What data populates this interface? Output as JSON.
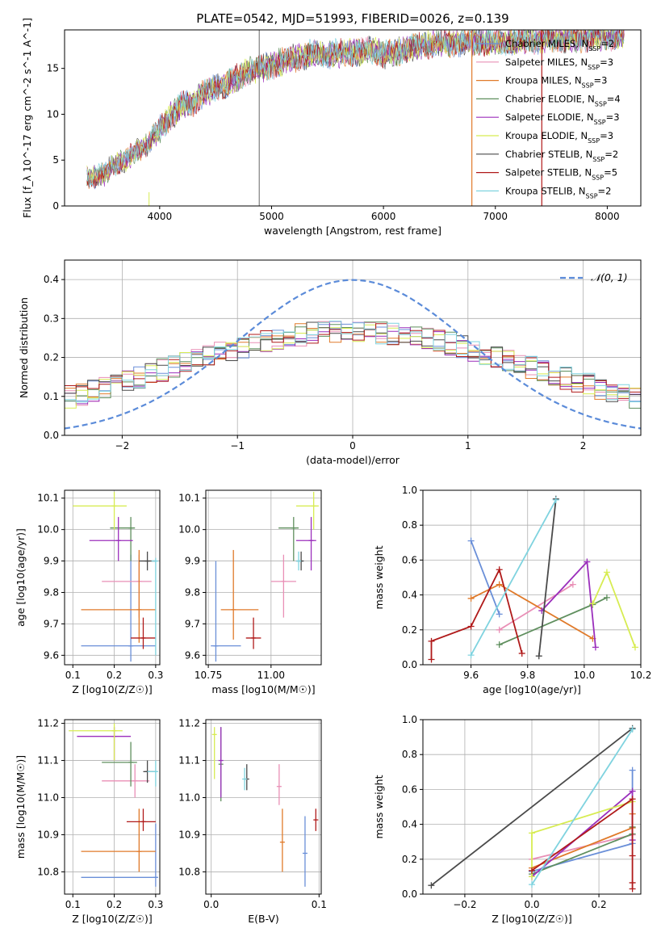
{
  "title": "PLATE=0542, MJD=51993, FIBERID=0026, z=0.139",
  "chart_data": [
    {
      "type": "line",
      "id": "spectrum",
      "xlabel": "wavelength [Angstrom, rest frame]",
      "ylabel": "Flux [f_λ 10^-17 erg cm^-2 s^-1 A^-1]",
      "xlim": [
        3150,
        8300
      ],
      "ylim": [
        0,
        19.2
      ],
      "xticks": [
        4000,
        5000,
        6000,
        7000,
        8000
      ],
      "yticks": [
        0,
        5,
        10,
        15
      ],
      "grid": false,
      "legend_position": "top-right",
      "continuum": [
        [
          3350,
          3.1
        ],
        [
          3500,
          3.4
        ],
        [
          3600,
          4.6
        ],
        [
          3700,
          5.0
        ],
        [
          3800,
          6.0
        ],
        [
          3900,
          6.9
        ],
        [
          4000,
          8.4
        ],
        [
          4100,
          9.8
        ],
        [
          4200,
          11.0
        ],
        [
          4300,
          11.2
        ],
        [
          4400,
          12.4
        ],
        [
          4500,
          12.9
        ],
        [
          4600,
          13.3
        ],
        [
          4700,
          14.0
        ],
        [
          4800,
          14.7
        ],
        [
          4900,
          15.0
        ],
        [
          5000,
          15.3
        ],
        [
          5100,
          15.7
        ],
        [
          5200,
          16.1
        ],
        [
          5300,
          16.5
        ],
        [
          5500,
          16.6
        ],
        [
          5700,
          16.7
        ],
        [
          5900,
          17.0
        ],
        [
          6000,
          16.5
        ],
        [
          6200,
          17.1
        ],
        [
          6500,
          17.8
        ],
        [
          7000,
          17.9
        ],
        [
          7500,
          18.2
        ],
        [
          8000,
          18.5
        ],
        [
          8150,
          18.6
        ]
      ],
      "series": [
        {
          "name": "Chabrier MILES, N_SSP=2",
          "color": "#6a8fd8"
        },
        {
          "name": "Salpeter MILES, N_SSP=3",
          "color": "#e98fb6"
        },
        {
          "name": "Kroupa MILES, N_SSP=3",
          "color": "#e07a2a"
        },
        {
          "name": "Chabrier ELODIE, N_SSP=4",
          "color": "#5f8f5e"
        },
        {
          "name": "Salpeter ELODIE, N_SSP=3",
          "color": "#9b2fbc"
        },
        {
          "name": "Kroupa ELODIE, N_SSP=3",
          "color": "#d7ec52"
        },
        {
          "name": "Chabrier STELIB, N_SSP=2",
          "color": "#4a4a4a"
        },
        {
          "name": "Salpeter STELIB, N_SSP=5",
          "color": "#b01a1a"
        },
        {
          "name": "Kroupa STELIB, N_SSP=2",
          "color": "#7fd3df"
        }
      ]
    },
    {
      "type": "histogram",
      "id": "residuals",
      "xlabel": "(data-model)/error",
      "ylabel": "Normed distribution",
      "xlim": [
        -2.5,
        2.5
      ],
      "ylim": [
        0,
        0.45
      ],
      "xticks": [
        -2,
        -1,
        0,
        1,
        2
      ],
      "yticks": [
        0.0,
        0.1,
        0.2,
        0.3,
        0.4
      ],
      "grid": true,
      "bin_width": 0.1,
      "legend_position": "top-right",
      "legend": "𝒩(0, 1)",
      "reference_curve": "gaussian",
      "reference_color": "#5b8bd9"
    },
    {
      "type": "scatter",
      "id": "age_vs_Z",
      "xlabel": "Z [log10(Z/Z☉)]",
      "ylabel": "age [log10(age/yr)]",
      "xlim": [
        0.08,
        0.31
      ],
      "ylim": [
        9.57,
        10.125
      ],
      "xticks": [
        0.1,
        0.2,
        0.3
      ],
      "yticks": [
        9.6,
        9.7,
        9.8,
        9.9,
        10.0,
        10.1
      ],
      "grid": true,
      "points": [
        {
          "x": 0.24,
          "y": 9.63,
          "xerr": [
            0.12,
            0.3
          ],
          "yerr": [
            9.58,
            9.92
          ],
          "color": "#6a8fd8"
        },
        {
          "x": 0.26,
          "y": 9.835,
          "xerr": [
            0.17,
            0.29
          ],
          "yerr": [
            9.72,
            9.92
          ],
          "color": "#e98fb6"
        },
        {
          "x": 0.26,
          "y": 9.745,
          "xerr": [
            0.12,
            0.3
          ],
          "yerr": [
            9.64,
            9.935
          ],
          "color": "#e07a2a"
        },
        {
          "x": 0.24,
          "y": 10.005,
          "xerr": [
            0.19,
            0.25
          ],
          "yerr": [
            9.9,
            10.04
          ],
          "color": "#5f8f5e"
        },
        {
          "x": 0.21,
          "y": 9.965,
          "xerr": [
            0.14,
            0.245
          ],
          "yerr": [
            9.9,
            10.04
          ],
          "color": "#9b2fbc"
        },
        {
          "x": 0.2,
          "y": 10.075,
          "xerr": [
            0.1,
            0.23
          ],
          "yerr": [
            10.0,
            10.12
          ],
          "color": "#d7ec52"
        },
        {
          "x": 0.28,
          "y": 9.9,
          "xerr": [
            0.26,
            0.3
          ],
          "yerr": [
            9.87,
            9.93
          ],
          "color": "#4a4a4a"
        },
        {
          "x": 0.27,
          "y": 9.655,
          "xerr": [
            0.24,
            0.3
          ],
          "yerr": [
            9.62,
            9.72
          ],
          "color": "#b01a1a"
        },
        {
          "x": 0.3,
          "y": 9.9,
          "xerr": [
            0.29,
            0.305
          ],
          "yerr": [
            9.6,
            9.91
          ],
          "color": "#7fd3df"
        }
      ]
    },
    {
      "type": "scatter",
      "id": "age_vs_mass",
      "xlabel": "mass [log10(M/M☉)]",
      "ylabel": "",
      "xlim": [
        10.74,
        11.2
      ],
      "ylim": [
        9.57,
        10.125
      ],
      "xticks": [
        10.75,
        11.0
      ],
      "yticks": [
        9.6,
        9.7,
        9.8,
        9.9,
        10.0,
        10.1
      ],
      "grid": true,
      "points": [
        {
          "x": 10.78,
          "y": 9.63,
          "xerr": [
            10.76,
            10.88
          ],
          "yerr": [
            9.58,
            9.9
          ],
          "color": "#6a8fd8"
        },
        {
          "x": 11.05,
          "y": 9.835,
          "xerr": [
            11.0,
            11.1
          ],
          "yerr": [
            9.72,
            9.92
          ],
          "color": "#e98fb6"
        },
        {
          "x": 10.85,
          "y": 9.745,
          "xerr": [
            10.8,
            10.95
          ],
          "yerr": [
            9.65,
            9.935
          ],
          "color": "#e07a2a"
        },
        {
          "x": 11.09,
          "y": 10.005,
          "xerr": [
            11.03,
            11.11
          ],
          "yerr": [
            9.9,
            10.04
          ],
          "color": "#5f8f5e"
        },
        {
          "x": 11.16,
          "y": 9.965,
          "xerr": [
            11.1,
            11.18
          ],
          "yerr": [
            9.87,
            10.04
          ],
          "color": "#9b2fbc"
        },
        {
          "x": 11.17,
          "y": 10.075,
          "xerr": [
            11.1,
            11.19
          ],
          "yerr": [
            10.0,
            10.12
          ],
          "color": "#d7ec52"
        },
        {
          "x": 11.12,
          "y": 9.9,
          "xerr": [
            11.1,
            11.13
          ],
          "yerr": [
            9.87,
            9.93
          ],
          "color": "#4a4a4a"
        },
        {
          "x": 10.93,
          "y": 9.655,
          "xerr": [
            10.9,
            10.96
          ],
          "yerr": [
            9.62,
            9.72
          ],
          "color": "#b01a1a"
        },
        {
          "x": 11.11,
          "y": 9.9,
          "xerr": [
            11.1,
            11.12
          ],
          "yerr": [
            9.87,
            9.93
          ],
          "color": "#7fd3df"
        }
      ]
    },
    {
      "type": "line",
      "id": "massweight_vs_age",
      "xlabel": "age [log10(age/yr)]",
      "ylabel": "mass weight",
      "xlim": [
        9.43,
        10.2
      ],
      "ylim": [
        0,
        1.0
      ],
      "xticks": [
        9.6,
        9.8,
        10.0,
        10.2
      ],
      "yticks": [
        0.0,
        0.2,
        0.4,
        0.6,
        0.8,
        1.0
      ],
      "grid": true,
      "series": [
        {
          "color": "#6a8fd8",
          "points": [
            [
              9.6,
              0.71
            ],
            [
              9.7,
              0.29
            ]
          ]
        },
        {
          "color": "#e98fb6",
          "points": [
            [
              9.7,
              0.2
            ],
            [
              9.96,
              0.46
            ]
          ]
        },
        {
          "color": "#e07a2a",
          "points": [
            [
              9.6,
              0.38
            ],
            [
              9.7,
              0.46
            ],
            [
              10.03,
              0.15
            ]
          ]
        },
        {
          "color": "#5f8f5e",
          "points": [
            [
              9.7,
              0.115
            ],
            [
              10.03,
              0.345
            ],
            [
              10.08,
              0.385
            ]
          ]
        },
        {
          "color": "#9b2fbc",
          "points": [
            [
              9.85,
              0.31
            ],
            [
              10.01,
              0.59
            ],
            [
              10.04,
              0.1
            ]
          ]
        },
        {
          "color": "#d7ec52",
          "points": [
            [
              10.03,
              0.35
            ],
            [
              10.08,
              0.53
            ],
            [
              10.18,
              0.1
            ]
          ]
        },
        {
          "color": "#4a4a4a",
          "points": [
            [
              9.84,
              0.05
            ],
            [
              9.9,
              0.95
            ]
          ]
        },
        {
          "color": "#b01a1a",
          "points": [
            [
              9.46,
              0.03
            ],
            [
              9.46,
              0.135
            ],
            [
              9.6,
              0.22
            ],
            [
              9.7,
              0.545
            ],
            [
              9.78,
              0.065
            ]
          ]
        },
        {
          "color": "#7fd3df",
          "points": [
            [
              9.6,
              0.055
            ],
            [
              9.9,
              0.945
            ]
          ]
        }
      ]
    },
    {
      "type": "scatter",
      "id": "mass_vs_Z",
      "xlabel": "Z [log10(Z/Z☉)]",
      "ylabel": "mass [log10(M/M☉)]",
      "xlim": [
        0.08,
        0.31
      ],
      "ylim": [
        10.74,
        11.21
      ],
      "xticks": [
        0.1,
        0.2,
        0.3
      ],
      "yticks": [
        10.8,
        10.9,
        11.0,
        11.1,
        11.2
      ],
      "grid": true,
      "points": [
        {
          "x": 0.3,
          "y": 10.785,
          "xerr": [
            0.12,
            0.305
          ],
          "yerr": [
            10.76,
            10.93
          ],
          "color": "#6a8fd8"
        },
        {
          "x": 0.25,
          "y": 11.045,
          "xerr": [
            0.17,
            0.285
          ],
          "yerr": [
            11.0,
            11.09
          ],
          "color": "#e98fb6"
        },
        {
          "x": 0.26,
          "y": 10.855,
          "xerr": [
            0.12,
            0.3
          ],
          "yerr": [
            10.8,
            10.97
          ],
          "color": "#e07a2a"
        },
        {
          "x": 0.24,
          "y": 11.095,
          "xerr": [
            0.17,
            0.255
          ],
          "yerr": [
            11.03,
            11.15
          ],
          "color": "#5f8f5e"
        },
        {
          "x": 0.2,
          "y": 11.165,
          "xerr": [
            0.11,
            0.24
          ],
          "yerr": [
            11.1,
            11.19
          ],
          "color": "#9b2fbc"
        },
        {
          "x": 0.2,
          "y": 11.18,
          "xerr": [
            0.09,
            0.22
          ],
          "yerr": [
            11.1,
            11.2
          ],
          "color": "#d7ec52"
        },
        {
          "x": 0.28,
          "y": 11.07,
          "xerr": [
            0.27,
            0.3
          ],
          "yerr": [
            11.04,
            11.1
          ],
          "color": "#4a4a4a"
        },
        {
          "x": 0.27,
          "y": 10.935,
          "xerr": [
            0.23,
            0.3
          ],
          "yerr": [
            10.91,
            10.97
          ],
          "color": "#b01a1a"
        },
        {
          "x": 0.3,
          "y": 11.07,
          "xerr": [
            0.28,
            0.305
          ],
          "yerr": [
            11.03,
            11.1
          ],
          "color": "#7fd3df"
        }
      ]
    },
    {
      "type": "scatter",
      "id": "mass_vs_ebv",
      "xlabel": "E(B-V)",
      "ylabel": "",
      "xlim": [
        -0.005,
        0.102
      ],
      "ylim": [
        10.74,
        11.21
      ],
      "xticks": [
        0.0,
        0.1
      ],
      "yticks": [
        10.8,
        10.9,
        11.0,
        11.1,
        11.2
      ],
      "grid": true,
      "points": [
        {
          "x": 0.087,
          "y": 10.85,
          "yerr": [
            10.76,
            10.95
          ],
          "color": "#6a8fd8"
        },
        {
          "x": 0.063,
          "y": 11.03,
          "yerr": [
            10.98,
            11.09
          ],
          "color": "#e98fb6"
        },
        {
          "x": 0.066,
          "y": 10.88,
          "yerr": [
            10.8,
            10.97
          ],
          "color": "#e07a2a"
        },
        {
          "x": 0.009,
          "y": 11.09,
          "yerr": [
            10.99,
            11.19
          ],
          "color": "#5f8f5e"
        },
        {
          "x": 0.009,
          "y": 11.1,
          "yerr": [
            11.0,
            11.19
          ],
          "color": "#9b2fbc"
        },
        {
          "x": 0.003,
          "y": 11.17,
          "yerr": [
            11.05,
            11.19
          ],
          "color": "#d7ec52"
        },
        {
          "x": 0.033,
          "y": 11.05,
          "yerr": [
            11.02,
            11.09
          ],
          "color": "#4a4a4a"
        },
        {
          "x": 0.097,
          "y": 10.94,
          "yerr": [
            10.91,
            10.97
          ],
          "color": "#b01a1a"
        },
        {
          "x": 0.031,
          "y": 11.05,
          "yerr": [
            11.02,
            11.08
          ],
          "color": "#7fd3df"
        }
      ]
    },
    {
      "type": "line",
      "id": "massweight_vs_Z",
      "xlabel": "Z [log10(Z/Z☉)]",
      "ylabel": "mass weight",
      "xlim": [
        -0.325,
        0.325
      ],
      "ylim": [
        0,
        1.0
      ],
      "xticks": [
        -0.2,
        0.0,
        0.2
      ],
      "yticks": [
        0.0,
        0.2,
        0.4,
        0.6,
        0.8,
        1.0
      ],
      "grid": true,
      "series": [
        {
          "color": "#6a8fd8",
          "points": [
            [
              0.0,
              0.13
            ],
            [
              0.3,
              0.29
            ],
            [
              0.3,
              0.71
            ]
          ]
        },
        {
          "color": "#e98fb6",
          "points": [
            [
              0.0,
              0.2
            ],
            [
              0.3,
              0.34
            ],
            [
              0.3,
              0.46
            ]
          ]
        },
        {
          "color": "#e07a2a",
          "points": [
            [
              0.0,
              0.15
            ],
            [
              0.3,
              0.38
            ],
            [
              0.3,
              0.46
            ]
          ]
        },
        {
          "color": "#5f8f5e",
          "points": [
            [
              0.0,
              0.115
            ],
            [
              0.3,
              0.345
            ],
            [
              0.3,
              0.385
            ]
          ]
        },
        {
          "color": "#9b2fbc",
          "points": [
            [
              0.0,
              0.1
            ],
            [
              0.3,
              0.59
            ],
            [
              0.3,
              0.31
            ]
          ]
        },
        {
          "color": "#d7ec52",
          "points": [
            [
              0.0,
              0.1
            ],
            [
              0.0,
              0.35
            ],
            [
              0.3,
              0.53
            ]
          ]
        },
        {
          "color": "#4a4a4a",
          "points": [
            [
              -0.3,
              0.05
            ],
            [
              0.3,
              0.95
            ]
          ]
        },
        {
          "color": "#b01a1a",
          "points": [
            [
              0.0,
              0.135
            ],
            [
              0.3,
              0.545
            ],
            [
              0.3,
              0.22
            ],
            [
              0.3,
              0.065
            ],
            [
              0.3,
              0.03
            ]
          ]
        },
        {
          "color": "#7fd3df",
          "points": [
            [
              0.0,
              0.055
            ],
            [
              0.3,
              0.945
            ]
          ]
        }
      ]
    }
  ]
}
